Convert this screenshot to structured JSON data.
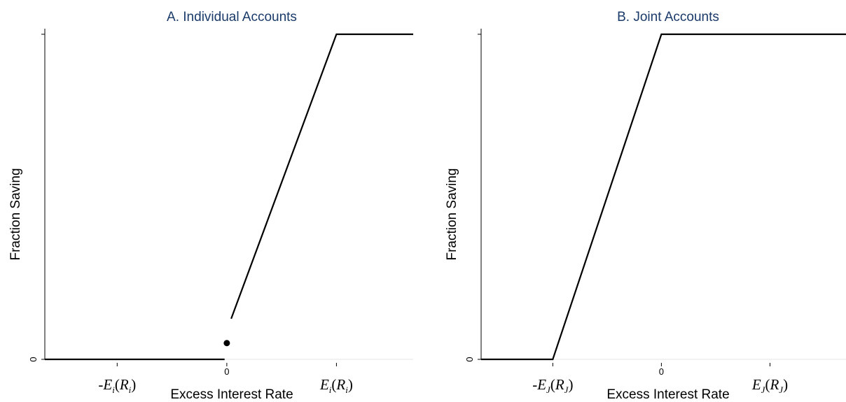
{
  "chart_data": [
    {
      "type": "line",
      "title": "A. Individual Accounts",
      "xlabel": "Excess Interest Rate",
      "ylabel": "Fraction Saving",
      "x_ticks": [
        {
          "label": "-E",
          "sub": "i",
          "arg": "R",
          "argsub": "i",
          "value": -1,
          "style": "math"
        },
        {
          "label": "0",
          "value": 0,
          "style": "number"
        },
        {
          "label": "E",
          "sub": "i",
          "arg": "R",
          "argsub": "i",
          "value": 1,
          "style": "math"
        }
      ],
      "y_ticks": [
        {
          "label": "0",
          "value": 0
        },
        {
          "label": "",
          "value": 1
        }
      ],
      "xlim": [
        -1.66,
        1.7
      ],
      "ylim": [
        0,
        1
      ],
      "grid": "y-at-zero",
      "series": [
        {
          "points": [
            [
              -1.66,
              0
            ],
            [
              -0.02,
              0
            ]
          ]
        },
        {
          "points": [
            [
              0.04,
              0.125
            ],
            [
              1.0,
              1.0
            ],
            [
              1.7,
              1.0
            ]
          ]
        }
      ],
      "markers": [
        {
          "x": 0,
          "y": 0.05
        }
      ]
    },
    {
      "type": "line",
      "title": "B. Joint Accounts",
      "xlabel": "Excess Interest Rate",
      "ylabel": "Fraction Saving",
      "x_ticks": [
        {
          "label": "-E",
          "sub": "J",
          "arg": "R",
          "argsub": "J",
          "value": -1,
          "style": "math"
        },
        {
          "label": "0",
          "value": 0,
          "style": "number"
        },
        {
          "label": "E",
          "sub": "J",
          "arg": "R",
          "argsub": "J",
          "value": 1,
          "style": "math"
        }
      ],
      "y_ticks": [
        {
          "label": "0",
          "value": 0
        },
        {
          "label": "",
          "value": 1
        }
      ],
      "xlim": [
        -1.66,
        1.7
      ],
      "ylim": [
        0,
        1
      ],
      "grid": "y-at-zero",
      "series": [
        {
          "points": [
            [
              -1.66,
              0
            ],
            [
              -1.0,
              0
            ],
            [
              0,
              1.0
            ],
            [
              1.7,
              1.0
            ]
          ]
        }
      ],
      "markers": []
    }
  ]
}
